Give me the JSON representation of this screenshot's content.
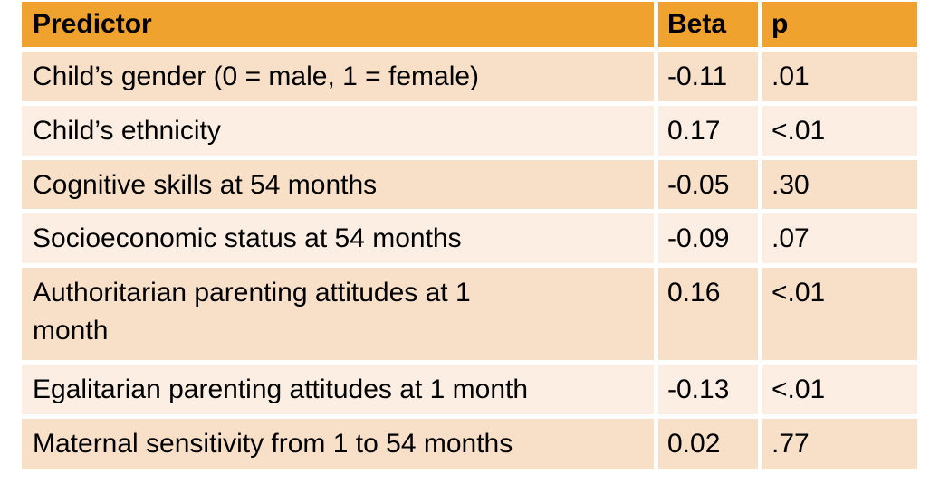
{
  "colors": {
    "header_bg": "#EFA22D",
    "row_dark_bg": "#F8DFC8",
    "row_light_bg": "#FCEEE2",
    "text": "#000000",
    "page_bg": "#FFFFFF"
  },
  "table": {
    "headers": {
      "predictor": "Predictor",
      "beta": "Beta",
      "p": "p"
    },
    "rows": [
      {
        "predictor": "Child’s gender (0 = male, 1 = female)",
        "beta": "-0.11",
        "p": ".01"
      },
      {
        "predictor": "Child’s ethnicity",
        "beta": "0.17",
        "p": "<.01"
      },
      {
        "predictor": "Cognitive skills at 54 months",
        "beta": "-0.05",
        "p": ".30"
      },
      {
        "predictor": "Socioeconomic status at 54 months",
        "beta": "-0.09",
        "p": ".07"
      },
      {
        "predictor": "Authoritarian parenting attitudes at 1 month",
        "beta": "0.16",
        "p": "<.01"
      },
      {
        "predictor": "Egalitarian parenting attitudes at 1 month",
        "beta": "-0.13",
        "p": "<.01"
      },
      {
        "predictor": "Maternal sensitivity from 1 to 54 months",
        "beta": "0.02",
        "p": ".77"
      }
    ]
  },
  "chart_data": {
    "type": "table",
    "columns": [
      "Predictor",
      "Beta",
      "p"
    ],
    "rows": [
      [
        "Child’s gender (0 = male, 1 = female)",
        "-0.11",
        ".01"
      ],
      [
        "Child’s ethnicity",
        "0.17",
        "<.01"
      ],
      [
        "Cognitive skills at 54 months",
        "-0.05",
        ".30"
      ],
      [
        "Socioeconomic status at 54 months",
        "-0.09",
        ".07"
      ],
      [
        "Authoritarian parenting attitudes at 1 month",
        "0.16",
        "<.01"
      ],
      [
        "Egalitarian parenting attitudes at 1 month",
        "-0.13",
        "<.01"
      ],
      [
        "Maternal sensitivity from 1 to 54 months",
        "0.02",
        ".77"
      ]
    ]
  }
}
